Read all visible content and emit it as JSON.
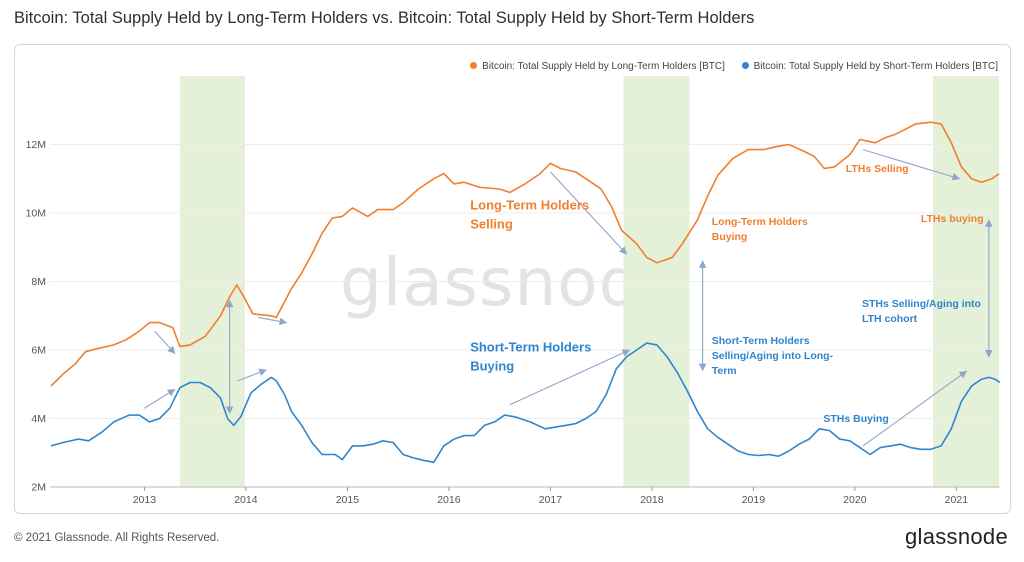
{
  "title": "Bitcoin: Total Supply Held by Long-Term Holders vs. Bitcoin: Total Supply Held by Short-Term Holders",
  "footer": {
    "copyright": "© 2021 Glassnode. All Rights Reserved.",
    "logo": "glassnode"
  },
  "watermark": "glassnode",
  "colors": {
    "lth": "#f07f2e",
    "sth": "#2d86cf",
    "band": "#e4f1d8",
    "arrow": "#8fa6cc",
    "axis": "#555555"
  },
  "chart_data": {
    "type": "line",
    "x_unit": "year",
    "xlim": [
      2012.07,
      2021.43
    ],
    "ylim": [
      2000000,
      14000000
    ],
    "y_ticks": [
      {
        "value": 2000000,
        "label": "2M"
      },
      {
        "value": 4000000,
        "label": "4M"
      },
      {
        "value": 6000000,
        "label": "6M"
      },
      {
        "value": 8000000,
        "label": "8M"
      },
      {
        "value": 10000000,
        "label": "10M"
      },
      {
        "value": 12000000,
        "label": "12M"
      }
    ],
    "x_ticks": [
      {
        "value": 2013,
        "label": "2013"
      },
      {
        "value": 2014,
        "label": "2014"
      },
      {
        "value": 2015,
        "label": "2015"
      },
      {
        "value": 2016,
        "label": "2016"
      },
      {
        "value": 2017,
        "label": "2017"
      },
      {
        "value": 2018,
        "label": "2018"
      },
      {
        "value": 2019,
        "label": "2019"
      },
      {
        "value": 2020,
        "label": "2020"
      },
      {
        "value": 2021,
        "label": "2021"
      }
    ],
    "grid": "horizontal",
    "legend_position": "top-right",
    "shaded_periods": [
      [
        2013.35,
        2013.99
      ],
      [
        2017.72,
        2018.37
      ],
      [
        2020.77,
        2021.42
      ]
    ],
    "series": [
      {
        "name": "Bitcoin: Total Supply Held by Long-Term Holders [BTC]",
        "color": "#f07f2e",
        "points": [
          [
            2012.08,
            4950000
          ],
          [
            2012.2,
            5300000
          ],
          [
            2012.32,
            5600000
          ],
          [
            2012.42,
            5950000
          ],
          [
            2012.55,
            6050000
          ],
          [
            2012.7,
            6150000
          ],
          [
            2012.82,
            6300000
          ],
          [
            2012.95,
            6550000
          ],
          [
            2013.05,
            6800000
          ],
          [
            2013.15,
            6800000
          ],
          [
            2013.28,
            6650000
          ],
          [
            2013.35,
            6100000
          ],
          [
            2013.45,
            6150000
          ],
          [
            2013.6,
            6400000
          ],
          [
            2013.75,
            7000000
          ],
          [
            2013.84,
            7550000
          ],
          [
            2013.91,
            7900000
          ],
          [
            2013.98,
            7550000
          ],
          [
            2014.07,
            7050000
          ],
          [
            2014.25,
            7000000
          ],
          [
            2014.3,
            6950000
          ],
          [
            2014.45,
            7800000
          ],
          [
            2014.55,
            8250000
          ],
          [
            2014.65,
            8800000
          ],
          [
            2014.75,
            9400000
          ],
          [
            2014.85,
            9850000
          ],
          [
            2014.95,
            9900000
          ],
          [
            2015.05,
            10150000
          ],
          [
            2015.2,
            9900000
          ],
          [
            2015.3,
            10100000
          ],
          [
            2015.45,
            10100000
          ],
          [
            2015.55,
            10300000
          ],
          [
            2015.7,
            10700000
          ],
          [
            2015.85,
            11000000
          ],
          [
            2015.95,
            11150000
          ],
          [
            2016.05,
            10850000
          ],
          [
            2016.15,
            10900000
          ],
          [
            2016.3,
            10750000
          ],
          [
            2016.5,
            10700000
          ],
          [
            2016.6,
            10600000
          ],
          [
            2016.75,
            10850000
          ],
          [
            2016.9,
            11150000
          ],
          [
            2017.0,
            11450000
          ],
          [
            2017.1,
            11300000
          ],
          [
            2017.25,
            11200000
          ],
          [
            2017.4,
            10900000
          ],
          [
            2017.5,
            10700000
          ],
          [
            2017.6,
            10200000
          ],
          [
            2017.7,
            9500000
          ],
          [
            2017.85,
            9100000
          ],
          [
            2017.95,
            8700000
          ],
          [
            2018.05,
            8550000
          ],
          [
            2018.2,
            8700000
          ],
          [
            2018.3,
            9100000
          ],
          [
            2018.45,
            9800000
          ],
          [
            2018.55,
            10500000
          ],
          [
            2018.65,
            11100000
          ],
          [
            2018.8,
            11600000
          ],
          [
            2018.95,
            11850000
          ],
          [
            2019.1,
            11850000
          ],
          [
            2019.25,
            11950000
          ],
          [
            2019.35,
            12000000
          ],
          [
            2019.5,
            11800000
          ],
          [
            2019.6,
            11650000
          ],
          [
            2019.7,
            11300000
          ],
          [
            2019.8,
            11350000
          ],
          [
            2019.95,
            11700000
          ],
          [
            2020.05,
            12150000
          ],
          [
            2020.2,
            12050000
          ],
          [
            2020.3,
            12200000
          ],
          [
            2020.4,
            12300000
          ],
          [
            2020.5,
            12450000
          ],
          [
            2020.6,
            12600000
          ],
          [
            2020.75,
            12650000
          ],
          [
            2020.85,
            12600000
          ],
          [
            2020.95,
            12050000
          ],
          [
            2021.05,
            11350000
          ],
          [
            2021.15,
            11000000
          ],
          [
            2021.25,
            10900000
          ],
          [
            2021.35,
            11000000
          ],
          [
            2021.42,
            11150000
          ]
        ]
      },
      {
        "name": "Bitcoin: Total Supply Held by Short-Term Holders [BTC]",
        "color": "#2d86cf",
        "points": [
          [
            2012.08,
            3200000
          ],
          [
            2012.2,
            3300000
          ],
          [
            2012.35,
            3400000
          ],
          [
            2012.45,
            3350000
          ],
          [
            2012.58,
            3600000
          ],
          [
            2012.7,
            3900000
          ],
          [
            2012.85,
            4100000
          ],
          [
            2012.95,
            4100000
          ],
          [
            2013.05,
            3900000
          ],
          [
            2013.15,
            4000000
          ],
          [
            2013.25,
            4300000
          ],
          [
            2013.35,
            4900000
          ],
          [
            2013.45,
            5050000
          ],
          [
            2013.55,
            5050000
          ],
          [
            2013.65,
            4900000
          ],
          [
            2013.75,
            4600000
          ],
          [
            2013.82,
            4000000
          ],
          [
            2013.88,
            3800000
          ],
          [
            2013.95,
            4050000
          ],
          [
            2014.05,
            4750000
          ],
          [
            2014.15,
            5000000
          ],
          [
            2014.25,
            5200000
          ],
          [
            2014.3,
            5100000
          ],
          [
            2014.38,
            4700000
          ],
          [
            2014.45,
            4200000
          ],
          [
            2014.55,
            3800000
          ],
          [
            2014.65,
            3300000
          ],
          [
            2014.75,
            2950000
          ],
          [
            2014.88,
            2950000
          ],
          [
            2014.95,
            2800000
          ],
          [
            2015.05,
            3200000
          ],
          [
            2015.15,
            3200000
          ],
          [
            2015.25,
            3250000
          ],
          [
            2015.35,
            3350000
          ],
          [
            2015.45,
            3300000
          ],
          [
            2015.55,
            2950000
          ],
          [
            2015.65,
            2850000
          ],
          [
            2015.75,
            2780000
          ],
          [
            2015.85,
            2720000
          ],
          [
            2015.95,
            3200000
          ],
          [
            2016.05,
            3400000
          ],
          [
            2016.15,
            3500000
          ],
          [
            2016.25,
            3500000
          ],
          [
            2016.35,
            3800000
          ],
          [
            2016.45,
            3900000
          ],
          [
            2016.55,
            4100000
          ],
          [
            2016.65,
            4050000
          ],
          [
            2016.8,
            3900000
          ],
          [
            2016.95,
            3700000
          ],
          [
            2017.05,
            3750000
          ],
          [
            2017.15,
            3800000
          ],
          [
            2017.25,
            3850000
          ],
          [
            2017.35,
            4000000
          ],
          [
            2017.45,
            4200000
          ],
          [
            2017.55,
            4700000
          ],
          [
            2017.65,
            5450000
          ],
          [
            2017.75,
            5800000
          ],
          [
            2017.85,
            6000000
          ],
          [
            2017.95,
            6200000
          ],
          [
            2018.05,
            6150000
          ],
          [
            2018.15,
            5800000
          ],
          [
            2018.25,
            5350000
          ],
          [
            2018.35,
            4800000
          ],
          [
            2018.45,
            4200000
          ],
          [
            2018.55,
            3700000
          ],
          [
            2018.65,
            3450000
          ],
          [
            2018.75,
            3250000
          ],
          [
            2018.85,
            3050000
          ],
          [
            2018.95,
            2950000
          ],
          [
            2019.05,
            2920000
          ],
          [
            2019.15,
            2950000
          ],
          [
            2019.25,
            2900000
          ],
          [
            2019.35,
            3050000
          ],
          [
            2019.45,
            3250000
          ],
          [
            2019.55,
            3400000
          ],
          [
            2019.65,
            3700000
          ],
          [
            2019.75,
            3650000
          ],
          [
            2019.85,
            3400000
          ],
          [
            2019.95,
            3350000
          ],
          [
            2020.05,
            3150000
          ],
          [
            2020.15,
            2950000
          ],
          [
            2020.25,
            3150000
          ],
          [
            2020.35,
            3200000
          ],
          [
            2020.45,
            3250000
          ],
          [
            2020.55,
            3150000
          ],
          [
            2020.65,
            3100000
          ],
          [
            2020.75,
            3100000
          ],
          [
            2020.85,
            3200000
          ],
          [
            2020.95,
            3700000
          ],
          [
            2021.05,
            4500000
          ],
          [
            2021.15,
            4950000
          ],
          [
            2021.25,
            5150000
          ],
          [
            2021.32,
            5200000
          ],
          [
            2021.38,
            5150000
          ],
          [
            2021.43,
            5050000
          ]
        ]
      }
    ],
    "annotations": [
      {
        "lines": [
          "Long-Term Holders",
          "Selling"
        ],
        "color": "#f07f2e",
        "size": "large",
        "at": [
          2016.21,
          10100000
        ]
      },
      {
        "lines": [
          "Short-Term Holders",
          "Buying"
        ],
        "color": "#2d86cf",
        "size": "large",
        "at": [
          2016.21,
          5950000
        ]
      },
      {
        "lines": [
          "Long-Term Holders",
          "Buying"
        ],
        "color": "#f07f2e",
        "size": "small",
        "at": [
          2018.59,
          9650000
        ]
      },
      {
        "lines": [
          "Short-Term Holders",
          "Selling/Aging into Long-",
          "Term"
        ],
        "color": "#2d86cf",
        "size": "small",
        "at": [
          2018.59,
          6170000
        ]
      },
      {
        "lines": [
          "LTHs Selling"
        ],
        "color": "#f07f2e",
        "size": "small",
        "at": [
          2019.91,
          11200000
        ]
      },
      {
        "lines": [
          "LTHs buying"
        ],
        "color": "#f07f2e",
        "size": "small",
        "at": [
          2020.65,
          9740000
        ]
      },
      {
        "lines": [
          "STHs Selling/Aging into",
          "LTH cohort"
        ],
        "color": "#2d86cf",
        "size": "small",
        "at": [
          2020.07,
          7250000
        ]
      },
      {
        "lines": [
          "STHs Buying"
        ],
        "color": "#2d86cf",
        "size": "small",
        "at": [
          2019.69,
          3900000
        ]
      }
    ],
    "arrows": [
      {
        "from": [
          2013.1,
          6550000
        ],
        "to": [
          2013.3,
          5900000
        ]
      },
      {
        "from": [
          2013.0,
          4300000
        ],
        "to": [
          2013.3,
          4850000
        ]
      },
      {
        "from": [
          2014.12,
          6950000
        ],
        "to": [
          2014.4,
          6800000
        ]
      },
      {
        "from": [
          2013.92,
          5100000
        ],
        "to": [
          2014.2,
          5420000
        ]
      },
      {
        "from": [
          2017.0,
          11200000
        ],
        "to": [
          2017.75,
          8800000
        ]
      },
      {
        "from": [
          2016.6,
          4400000
        ],
        "to": [
          2017.78,
          6000000
        ]
      },
      {
        "from": [
          2020.08,
          11850000
        ],
        "to": [
          2021.03,
          11000000
        ]
      },
      {
        "from": [
          2020.08,
          3200000
        ],
        "to": [
          2021.1,
          5380000
        ]
      },
      {
        "from": [
          2018.5,
          5400000
        ],
        "to": [
          2018.5,
          8600000
        ],
        "double": true
      },
      {
        "from": [
          2013.84,
          4150000
        ],
        "to": [
          2013.84,
          7450000
        ],
        "double": true
      },
      {
        "from": [
          2021.32,
          5800000
        ],
        "to": [
          2021.32,
          9800000
        ],
        "double": true
      }
    ]
  }
}
